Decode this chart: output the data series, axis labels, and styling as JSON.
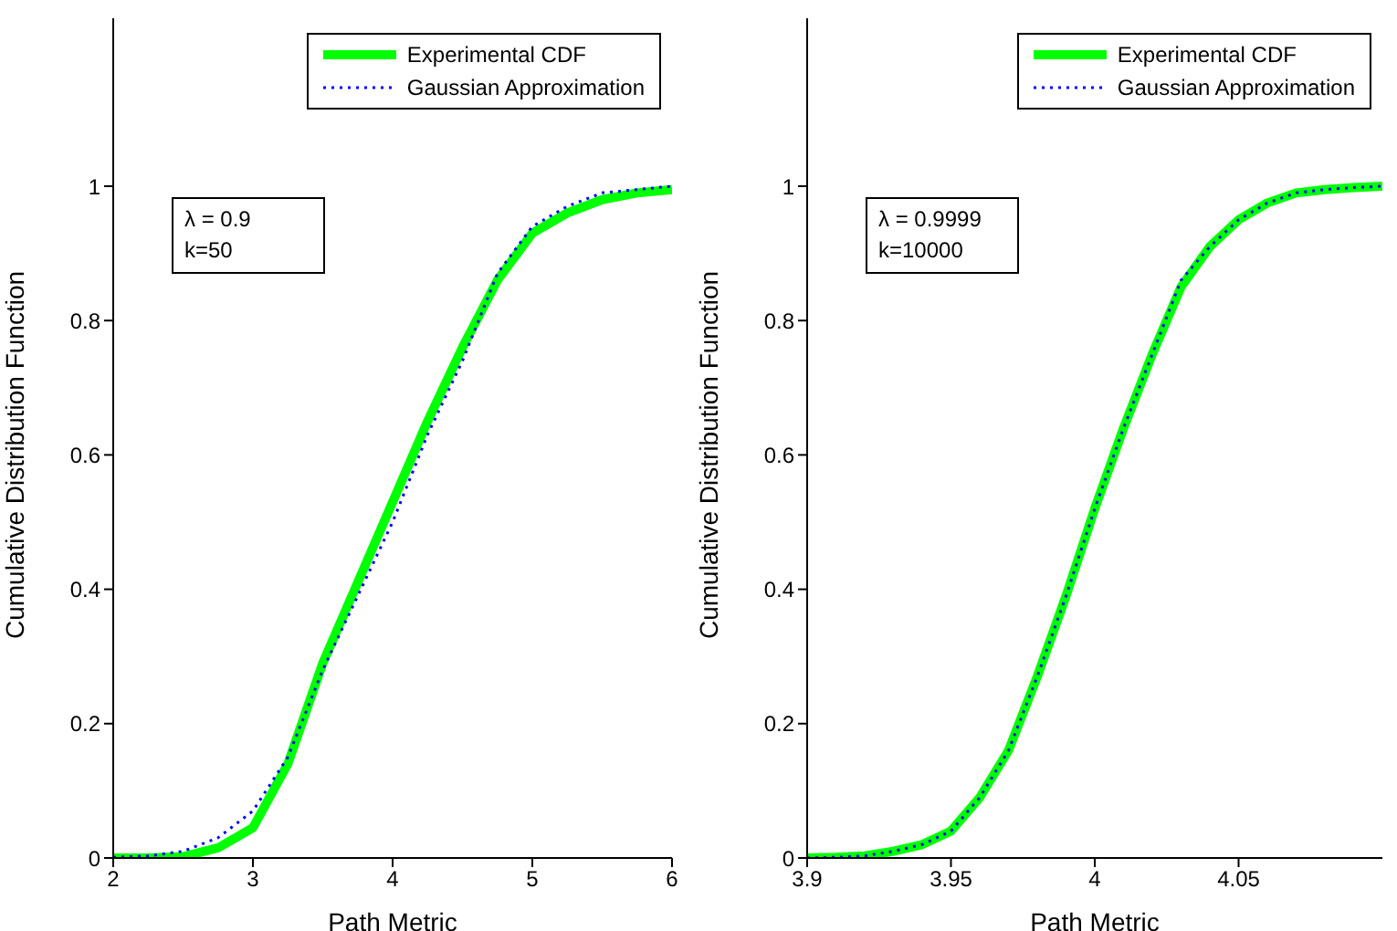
{
  "chart_data": [
    {
      "type": "line",
      "xlabel": "Path Metric",
      "ylabel": "Cumulative Distribution Function",
      "annotations": [
        "λ = 0.9",
        "k=50"
      ],
      "legend": "top right",
      "marker": "none",
      "x": [
        2,
        2.25,
        2.5,
        2.75,
        3,
        3.25,
        3.5,
        3.75,
        4,
        4.25,
        4.5,
        4.75,
        5,
        5.25,
        5.5,
        5.75,
        6
      ],
      "series": [
        {
          "name": "Experimental CDF",
          "color": "#00ff00",
          "line_style": "solid",
          "values": [
            0,
            0,
            0.002,
            0.015,
            0.045,
            0.14,
            0.29,
            0.41,
            0.53,
            0.65,
            0.76,
            0.86,
            0.93,
            0.96,
            0.98,
            0.99,
            0.995
          ]
        },
        {
          "name": "Gaussian Approximation",
          "color": "#0000ff",
          "line_style": "dotted",
          "values": [
            0.001,
            0.003,
            0.01,
            0.03,
            0.07,
            0.15,
            0.28,
            0.39,
            0.5,
            0.63,
            0.74,
            0.87,
            0.94,
            0.97,
            0.99,
            0.995,
            1
          ]
        }
      ],
      "xlim": [
        2,
        6
      ],
      "xticks": [
        2,
        3,
        4,
        5,
        6
      ],
      "ylim": [
        0,
        1.25
      ],
      "yticks": [
        0,
        0.2,
        0.4,
        0.6,
        0.8,
        1
      ],
      "grid": false
    },
    {
      "type": "line",
      "xlabel": "Path Metric",
      "ylabel": "Cumulative Distribution Function",
      "annotations": [
        "λ = 0.9999",
        "k=10000"
      ],
      "legend": "top right",
      "marker": "none",
      "x": [
        3.9,
        3.91,
        3.92,
        3.93,
        3.94,
        3.95,
        3.96,
        3.97,
        3.98,
        3.99,
        4,
        4.01,
        4.02,
        4.03,
        4.04,
        4.05,
        4.06,
        4.07,
        4.08,
        4.09,
        4.1
      ],
      "series": [
        {
          "name": "Experimental CDF",
          "color": "#00ff00",
          "line_style": "solid",
          "values": [
            0,
            0.001,
            0.003,
            0.01,
            0.02,
            0.04,
            0.09,
            0.16,
            0.27,
            0.39,
            0.52,
            0.64,
            0.75,
            0.85,
            0.91,
            0.95,
            0.975,
            0.99,
            0.995,
            0.998,
            1
          ]
        },
        {
          "name": "Gaussian Approximation",
          "color": "#0000ff",
          "line_style": "dotted",
          "values": [
            0,
            0.001,
            0.003,
            0.01,
            0.02,
            0.04,
            0.09,
            0.16,
            0.27,
            0.39,
            0.52,
            0.64,
            0.75,
            0.86,
            0.91,
            0.95,
            0.975,
            0.99,
            0.995,
            0.998,
            1
          ]
        }
      ],
      "xlim": [
        3.9,
        4.1
      ],
      "xticks": [
        3.9,
        3.95,
        4,
        4.05
      ],
      "ylim": [
        0,
        1.25
      ],
      "yticks": [
        0,
        0.2,
        0.4,
        0.6,
        0.8,
        1
      ],
      "grid": false
    }
  ]
}
